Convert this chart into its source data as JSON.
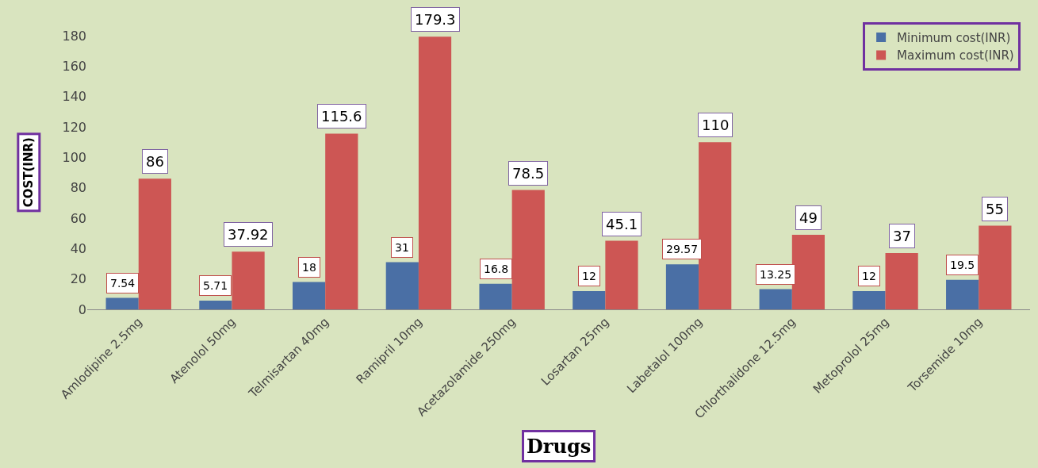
{
  "chart_data": {
    "type": "bar",
    "xlabel": "Drugs",
    "ylabel": "COST(INR)",
    "categories": [
      "Amlodipine 2.5mg",
      "Atenolol 50mg",
      "Telmisartan 40mg",
      "Ramipril 10mg",
      "Acetazolamide 250mg",
      "Losartan 25mg",
      "Labetalol 100mg",
      "Chlorthalidone 12.5mg",
      "Metoprolol 25mg",
      "Torsemide 10mg"
    ],
    "series": [
      {
        "name": "Minimum cost(INR)",
        "color": "#4a6fa5",
        "values": [
          7.54,
          5.71,
          18,
          31,
          16.8,
          12,
          29.57,
          13.25,
          12,
          19.5
        ]
      },
      {
        "name": "Maximum cost(INR)",
        "color": "#cd5654",
        "values": [
          86,
          37.92,
          115.6,
          179.3,
          78.5,
          45.1,
          110,
          49,
          37,
          55
        ]
      }
    ],
    "ylim": [
      0,
      180
    ],
    "yticks": [
      0,
      20,
      40,
      60,
      80,
      100,
      120,
      140,
      160,
      180
    ],
    "grid": false,
    "legend": "top right",
    "data_labels": true
  }
}
